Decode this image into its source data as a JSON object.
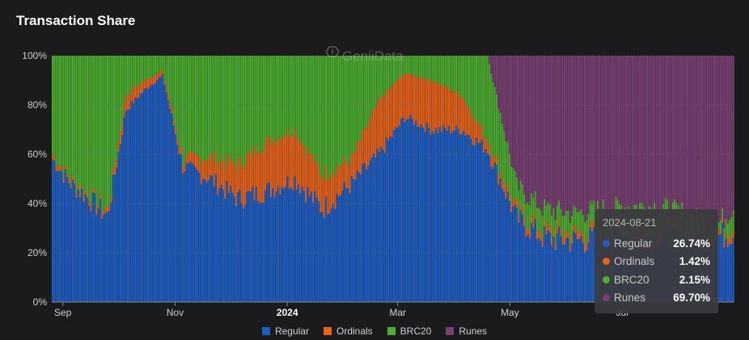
{
  "header": {
    "title": "Transaction Share"
  },
  "watermark": "GeniiData",
  "colors": {
    "Regular": "#1f5fc4",
    "Ordinals": "#e8641c",
    "BRC20": "#4caf2f",
    "Runes": "#7a3f73"
  },
  "tooltip": {
    "date": "2024-08-21",
    "rows": [
      {
        "name": "Regular",
        "value": "26.74%",
        "color": "#1f5fc4"
      },
      {
        "name": "Ordinals",
        "value": "1.42%",
        "color": "#e8641c"
      },
      {
        "name": "BRC20",
        "value": "2.15%",
        "color": "#4caf2f"
      },
      {
        "name": "Runes",
        "value": "69.70%",
        "color": "#7a3f73"
      }
    ]
  },
  "legend": [
    {
      "name": "Regular",
      "color": "#1f5fc4"
    },
    {
      "name": "Ordinals",
      "color": "#e8641c"
    },
    {
      "name": "BRC20",
      "color": "#4caf2f"
    },
    {
      "name": "Runes",
      "color": "#7a3f73"
    }
  ],
  "chart_data": {
    "type": "bar",
    "stacked": true,
    "title": "Transaction Share",
    "xlabel": "",
    "ylabel": "",
    "ylim": [
      0,
      100
    ],
    "yticks": [
      "0%",
      "20%",
      "40%",
      "60%",
      "80%",
      "100%"
    ],
    "xticks": [
      "Sep",
      "Nov",
      "2024",
      "Mar",
      "May",
      "Jul"
    ],
    "x_range": [
      "2023-08-26",
      "2024-08-31"
    ],
    "tick_dates": [
      "2023-09-01",
      "2023-11-01",
      "2024-01-01",
      "2024-03-01",
      "2024-05-01",
      "2024-07-01"
    ],
    "segment_dates": [
      "2023-08-26",
      "2023-09-05",
      "2023-09-15",
      "2023-09-25",
      "2023-10-05",
      "2023-10-15",
      "2023-10-25",
      "2023-11-05",
      "2023-11-20",
      "2023-12-05",
      "2023-12-20",
      "2024-01-05",
      "2024-01-20",
      "2024-02-05",
      "2024-02-20",
      "2024-03-05",
      "2024-03-20",
      "2024-04-05",
      "2024-04-19",
      "2024-05-05",
      "2024-05-20",
      "2024-06-05",
      "2024-06-20",
      "2024-07-05",
      "2024-07-20",
      "2024-08-05",
      "2024-08-21",
      "2024-08-31"
    ],
    "series": [
      {
        "name": "Regular",
        "values": [
          58,
          48,
          42,
          35,
          78,
          86,
          92,
          55,
          50,
          42,
          45,
          50,
          38,
          48,
          60,
          75,
          70,
          70,
          62,
          34,
          26,
          25,
          26,
          27,
          27,
          25,
          26.74,
          28
        ]
      },
      {
        "name": "Ordinals",
        "values": [
          2,
          2,
          2,
          2,
          6,
          4,
          2,
          3,
          9,
          14,
          20,
          20,
          14,
          10,
          22,
          18,
          20,
          14,
          4,
          3,
          3,
          3,
          3,
          3,
          3,
          3,
          1.42,
          3
        ]
      },
      {
        "name": "BRC20",
        "values": [
          40,
          50,
          56,
          63,
          16,
          10,
          6,
          42,
          41,
          44,
          35,
          30,
          48,
          42,
          18,
          7,
          10,
          16,
          34,
          10,
          9,
          8,
          9,
          9,
          9,
          8,
          2.15,
          8
        ]
      },
      {
        "name": "Runes",
        "values": [
          0,
          0,
          0,
          0,
          0,
          0,
          0,
          0,
          0,
          0,
          0,
          0,
          0,
          0,
          0,
          0,
          0,
          0,
          0,
          53,
          62,
          64,
          62,
          61,
          61,
          64,
          69.7,
          61
        ]
      }
    ]
  }
}
